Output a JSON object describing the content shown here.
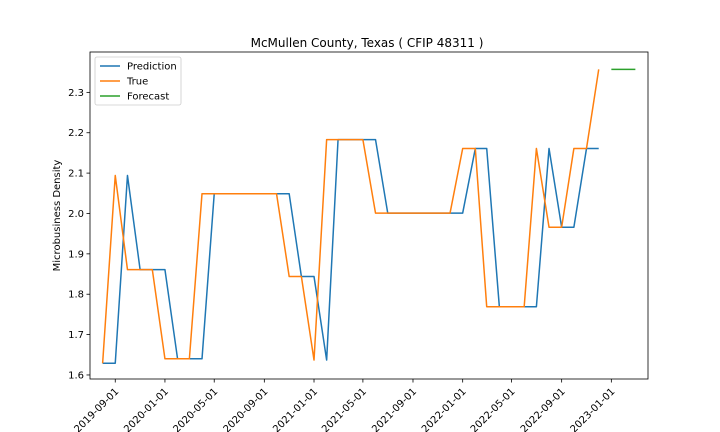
{
  "chart_data": {
    "type": "line",
    "title": "McMullen County, Texas ( CFIP 48311 )",
    "xlabel": "",
    "ylabel": "Microbusiness Density",
    "ylim": [
      1.59,
      2.4
    ],
    "xlim": [
      "2019-07-01",
      "2023-04-01"
    ],
    "grid": false,
    "legend_position": "top-left",
    "x_ticks": [
      "2019-09-01",
      "2020-01-01",
      "2020-05-01",
      "2020-09-01",
      "2021-01-01",
      "2021-05-01",
      "2021-09-01",
      "2022-01-01",
      "2022-05-01",
      "2022-09-01",
      "2023-01-01"
    ],
    "y_ticks": [
      1.6,
      1.7,
      1.8,
      1.9,
      2.0,
      2.1,
      2.2,
      2.3
    ],
    "series": [
      {
        "name": "Prediction",
        "color": "#1f77b4",
        "points": [
          [
            "2019-08-01",
            1.629
          ],
          [
            "2019-09-01",
            1.629
          ],
          [
            "2019-10-01",
            2.094
          ],
          [
            "2019-11-01",
            1.861
          ],
          [
            "2019-12-01",
            1.861
          ],
          [
            "2020-01-01",
            1.861
          ],
          [
            "2020-02-01",
            1.64
          ],
          [
            "2020-03-01",
            1.64
          ],
          [
            "2020-04-01",
            1.64
          ],
          [
            "2020-05-01",
            2.049
          ],
          [
            "2020-06-01",
            2.049
          ],
          [
            "2020-07-01",
            2.049
          ],
          [
            "2020-08-01",
            2.049
          ],
          [
            "2020-09-01",
            2.049
          ],
          [
            "2020-10-01",
            2.049
          ],
          [
            "2020-11-01",
            2.049
          ],
          [
            "2020-12-01",
            1.844
          ],
          [
            "2021-01-01",
            1.844
          ],
          [
            "2021-02-01",
            1.637
          ],
          [
            "2021-03-01",
            2.183
          ],
          [
            "2021-04-01",
            2.183
          ],
          [
            "2021-05-01",
            2.183
          ],
          [
            "2021-06-01",
            2.183
          ],
          [
            "2021-07-01",
            2.001
          ],
          [
            "2021-08-01",
            2.001
          ],
          [
            "2021-09-01",
            2.001
          ],
          [
            "2021-10-01",
            2.001
          ],
          [
            "2021-11-01",
            2.001
          ],
          [
            "2021-12-01",
            2.001
          ],
          [
            "2022-01-01",
            2.001
          ],
          [
            "2022-02-01",
            2.161
          ],
          [
            "2022-03-01",
            2.161
          ],
          [
            "2022-04-01",
            1.769
          ],
          [
            "2022-05-01",
            1.769
          ],
          [
            "2022-06-01",
            1.769
          ],
          [
            "2022-07-01",
            1.769
          ],
          [
            "2022-08-01",
            2.161
          ],
          [
            "2022-09-01",
            1.966
          ],
          [
            "2022-10-01",
            1.966
          ],
          [
            "2022-11-01",
            2.161
          ],
          [
            "2022-12-01",
            2.161
          ]
        ]
      },
      {
        "name": "True",
        "color": "#ff7f0e",
        "points": [
          [
            "2019-08-01",
            1.629
          ],
          [
            "2019-09-01",
            2.094
          ],
          [
            "2019-10-01",
            1.861
          ],
          [
            "2019-11-01",
            1.861
          ],
          [
            "2019-12-01",
            1.861
          ],
          [
            "2020-01-01",
            1.64
          ],
          [
            "2020-02-01",
            1.64
          ],
          [
            "2020-03-01",
            1.64
          ],
          [
            "2020-04-01",
            2.049
          ],
          [
            "2020-05-01",
            2.049
          ],
          [
            "2020-06-01",
            2.049
          ],
          [
            "2020-07-01",
            2.049
          ],
          [
            "2020-08-01",
            2.049
          ],
          [
            "2020-09-01",
            2.049
          ],
          [
            "2020-10-01",
            2.049
          ],
          [
            "2020-11-01",
            1.844
          ],
          [
            "2020-12-01",
            1.844
          ],
          [
            "2021-01-01",
            1.637
          ],
          [
            "2021-02-01",
            2.183
          ],
          [
            "2021-03-01",
            2.183
          ],
          [
            "2021-04-01",
            2.183
          ],
          [
            "2021-05-01",
            2.183
          ],
          [
            "2021-06-01",
            2.001
          ],
          [
            "2021-07-01",
            2.001
          ],
          [
            "2021-08-01",
            2.001
          ],
          [
            "2021-09-01",
            2.001
          ],
          [
            "2021-10-01",
            2.001
          ],
          [
            "2021-11-01",
            2.001
          ],
          [
            "2021-12-01",
            2.001
          ],
          [
            "2022-01-01",
            2.161
          ],
          [
            "2022-02-01",
            2.161
          ],
          [
            "2022-03-01",
            1.769
          ],
          [
            "2022-04-01",
            1.769
          ],
          [
            "2022-05-01",
            1.769
          ],
          [
            "2022-06-01",
            1.769
          ],
          [
            "2022-07-01",
            2.161
          ],
          [
            "2022-08-01",
            1.966
          ],
          [
            "2022-09-01",
            1.966
          ],
          [
            "2022-10-01",
            2.161
          ],
          [
            "2022-11-01",
            2.161
          ],
          [
            "2022-12-01",
            2.357
          ]
        ]
      },
      {
        "name": "Forecast",
        "color": "#2ca02c",
        "points": [
          [
            "2023-01-01",
            2.357
          ],
          [
            "2023-02-01",
            2.357
          ],
          [
            "2023-03-01",
            2.357
          ]
        ]
      }
    ]
  }
}
